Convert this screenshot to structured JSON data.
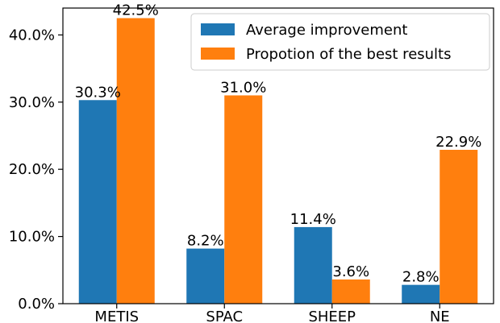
{
  "chart_data": {
    "type": "bar",
    "categories": [
      "METIS",
      "SPAC",
      "SHEEP",
      "NE"
    ],
    "series": [
      {
        "name": "Average improvement",
        "color": "#1f77b4",
        "values": [
          30.3,
          8.2,
          11.4,
          2.8
        ],
        "labels": [
          "30.3%",
          "8.2%",
          "11.4%",
          "2.8%"
        ]
      },
      {
        "name": "Propotion of the best results",
        "color": "#ff7f0e",
        "values": [
          42.5,
          31.0,
          3.6,
          22.9
        ],
        "labels": [
          "42.5%",
          "31.0%",
          "3.6%",
          "22.9%"
        ]
      }
    ],
    "ylim": [
      0,
      44
    ],
    "yticks": [
      0,
      10,
      20,
      30,
      40
    ],
    "ytick_labels": [
      "0.0%",
      "10.0%",
      "20.0%",
      "30.0%",
      "40.0%"
    ],
    "legend_position": "top-right",
    "grid": false
  }
}
